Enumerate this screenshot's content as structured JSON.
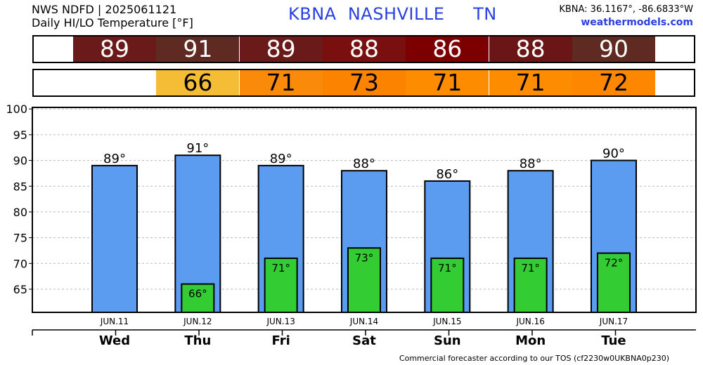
{
  "header": {
    "line1": "NWS NDFD | 2025061121",
    "line2": "Daily HI/LO Temperature [°F]",
    "station_code": "KBNA",
    "station_name": "NASHVILLE",
    "state": "TN",
    "coords": "KBNA: 36.1167°, -86.6833°W",
    "site": "weathermodels.com"
  },
  "footer": {
    "note": "Commercial forecaster according to our TOS (cf2230w0UKBNA0p230)"
  },
  "strips": {
    "hi": [
      {
        "label": "89",
        "color": "#6b1a1a"
      },
      {
        "label": "91",
        "color": "#5e2a22"
      },
      {
        "label": "89",
        "color": "#6b1a1a"
      },
      {
        "label": "88",
        "color": "#7a0f0f"
      },
      {
        "label": "86",
        "color": "#7d0000"
      },
      {
        "label": "88",
        "color": "#6b1616"
      },
      {
        "label": "90",
        "color": "#5e2a22"
      }
    ],
    "lo": [
      {
        "label": "66",
        "color": "#f5bd35"
      },
      {
        "label": "71",
        "color": "#fa8a0a"
      },
      {
        "label": "73",
        "color": "#fb8300"
      },
      {
        "label": "71",
        "color": "#fd8c00"
      },
      {
        "label": "71",
        "color": "#fd8c00"
      },
      {
        "label": "72",
        "color": "#fd8700"
      }
    ]
  },
  "chart_data": {
    "type": "bar",
    "categories": [
      "Wed",
      "Thu",
      "Fri",
      "Sat",
      "Sun",
      "Mon",
      "Tue"
    ],
    "dates": [
      "JUN.11",
      "JUN.12",
      "JUN.13",
      "JUN.14",
      "JUN.15",
      "JUN.16",
      "JUN.17"
    ],
    "series": [
      {
        "values": [
          89,
          91,
          89,
          88,
          86,
          88,
          90
        ],
        "labels": [
          "89°",
          "91°",
          "89°",
          "88°",
          "86°",
          "88°",
          "90°"
        ],
        "color": "#5b9bf0"
      },
      {
        "values": [
          null,
          66,
          71,
          73,
          71,
          71,
          72
        ],
        "labels": [
          "",
          "66°",
          "71°",
          "73°",
          "71°",
          "71°",
          "72°"
        ],
        "color": "#33cc33"
      }
    ],
    "ylim": [
      60.5,
      100.3
    ],
    "yticks": [
      "65",
      "70",
      "75",
      "80",
      "85",
      "90",
      "95",
      "100"
    ],
    "grid": true
  }
}
